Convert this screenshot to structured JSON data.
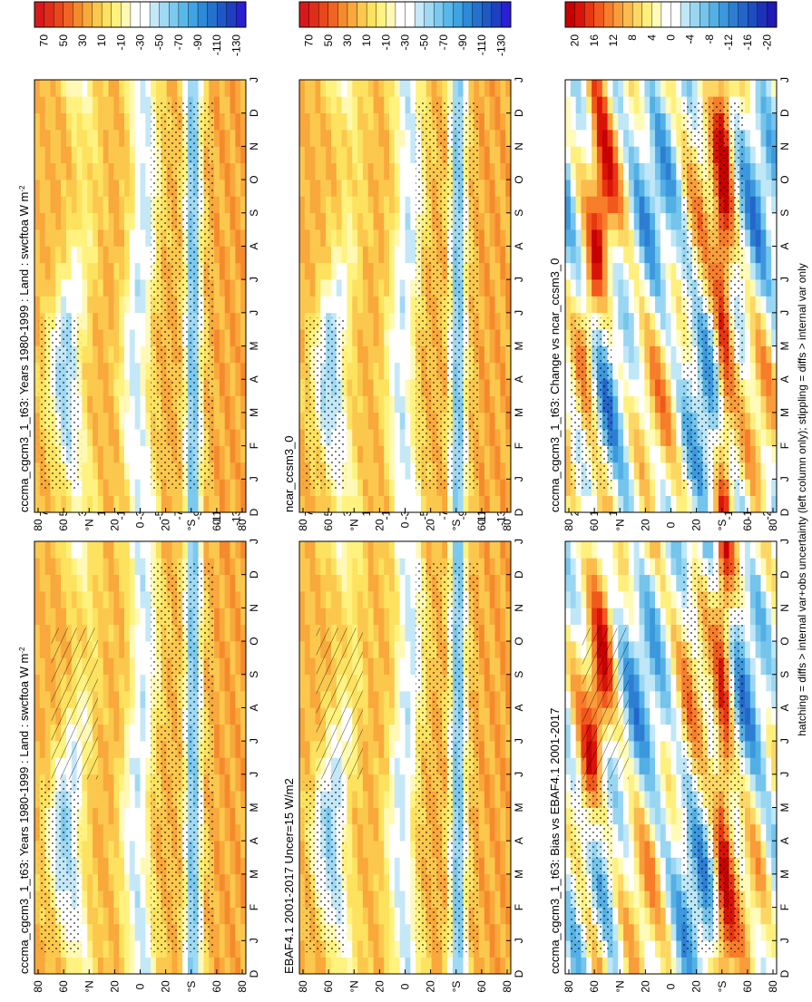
{
  "figure": {
    "footnote": "hatching = diffs > internal var+obs uncertainty (left column only); stippling = diffs > internal var only"
  },
  "chart_data": [
    {
      "type": "heatmap",
      "id": "p1",
      "title": "cccma_cgcm3_1_t63: Years 1980-1999 : Land : swcftoa W m",
      "title_sup": "-2",
      "x_ticks": [
        "D",
        "J",
        "F",
        "M",
        "A",
        "M",
        "J",
        "J",
        "A",
        "S",
        "O",
        "N",
        "D",
        "J"
      ],
      "y_ticks": [
        "80",
        "60",
        "N",
        "20",
        "0",
        "20",
        "S",
        "60",
        "80"
      ],
      "y_units": "°",
      "colorbar": {
        "labels": [
          "70",
          "50",
          "30",
          "10",
          "-10",
          "-30",
          "-50",
          "-70",
          "-90",
          "-110",
          "-130"
        ],
        "levels": 22,
        "scheme": "abs"
      },
      "hatched": true,
      "stippled": true
    },
    {
      "type": "heatmap",
      "id": "p2",
      "title": "EBAF4.1 2001-2017 Uncer=15 W/m2",
      "title_sup": "",
      "x_ticks": [
        "D",
        "J",
        "F",
        "M",
        "A",
        "M",
        "J",
        "J",
        "A",
        "S",
        "O",
        "N",
        "D",
        "J"
      ],
      "y_ticks": [
        "80",
        "60",
        "N",
        "20",
        "0",
        "20",
        "S",
        "60",
        "80"
      ],
      "y_units": "°",
      "colorbar": {
        "labels": [
          "70",
          "50",
          "30",
          "10",
          "-10",
          "-30",
          "-50",
          "-70",
          "-90",
          "-110",
          "-130"
        ],
        "levels": 22,
        "scheme": "abs"
      },
      "hatched": true,
      "stippled": true
    },
    {
      "type": "heatmap",
      "id": "p3",
      "title": "cccma_cgcm3_1_t63: Bias vs EBAF4.1 2001-2017",
      "title_sup": "",
      "x_ticks": [
        "D",
        "J",
        "F",
        "M",
        "A",
        "M",
        "J",
        "J",
        "A",
        "S",
        "O",
        "N",
        "D",
        "J"
      ],
      "y_ticks": [
        "80",
        "60",
        "N",
        "20",
        "0",
        "20",
        "S",
        "60",
        "80"
      ],
      "y_units": "°",
      "colorbar": {
        "labels": [
          "20",
          "16",
          "12",
          "8",
          "4",
          "0",
          "-4",
          "-8",
          "-12",
          "-16",
          "-20"
        ],
        "levels": 22,
        "scheme": "diff"
      },
      "hatched": true,
      "stippled": true
    },
    {
      "type": "heatmap",
      "id": "p4",
      "title": "cccma_cgcm3_1_t63: Years 1980-1999 : Land : swcftoa W m",
      "title_sup": "-2",
      "x_ticks": [
        "D",
        "J",
        "F",
        "M",
        "A",
        "M",
        "J",
        "J",
        "A",
        "S",
        "O",
        "N",
        "D",
        "J"
      ],
      "y_ticks": [
        "80",
        "60",
        "N",
        "20",
        "0",
        "20",
        "S",
        "60",
        "80"
      ],
      "y_units": "°",
      "colorbar": {
        "labels": [
          "70",
          "50",
          "30",
          "10",
          "-10",
          "-30",
          "-50",
          "-70",
          "-90",
          "-110",
          "-130"
        ],
        "levels": 22,
        "scheme": "abs"
      },
      "hatched": false,
      "stippled": true
    },
    {
      "type": "heatmap",
      "id": "p5",
      "title": "ncar_ccsm3_0",
      "title_sup": "",
      "x_ticks": [
        "D",
        "J",
        "F",
        "M",
        "A",
        "M",
        "J",
        "J",
        "A",
        "S",
        "O",
        "N",
        "D",
        "J"
      ],
      "y_ticks": [
        "80",
        "60",
        "N",
        "20",
        "0",
        "20",
        "S",
        "60",
        "80"
      ],
      "y_units": "°",
      "colorbar": {
        "labels": [
          "70",
          "50",
          "30",
          "10",
          "-10",
          "-30",
          "-50",
          "-70",
          "-90",
          "-110",
          "-130"
        ],
        "levels": 22,
        "scheme": "abs"
      },
      "hatched": false,
      "stippled": true
    },
    {
      "type": "heatmap",
      "id": "p6",
      "title": "cccma_cgcm3_1_t63: Change vs ncar_ccsm3_0",
      "title_sup": "",
      "x_ticks": [
        "D",
        "J",
        "F",
        "M",
        "A",
        "M",
        "J",
        "J",
        "A",
        "S",
        "O",
        "N",
        "D",
        "J"
      ],
      "y_ticks": [
        "80",
        "60",
        "N",
        "20",
        "0",
        "20",
        "S",
        "60",
        "80"
      ],
      "y_units": "°",
      "colorbar": {
        "labels": [
          "20",
          "16",
          "12",
          "8",
          "4",
          "0",
          "-4",
          "-8",
          "-12",
          "-16",
          "-20"
        ],
        "levels": 22,
        "scheme": "diff"
      },
      "hatched": false,
      "stippled": true
    }
  ]
}
